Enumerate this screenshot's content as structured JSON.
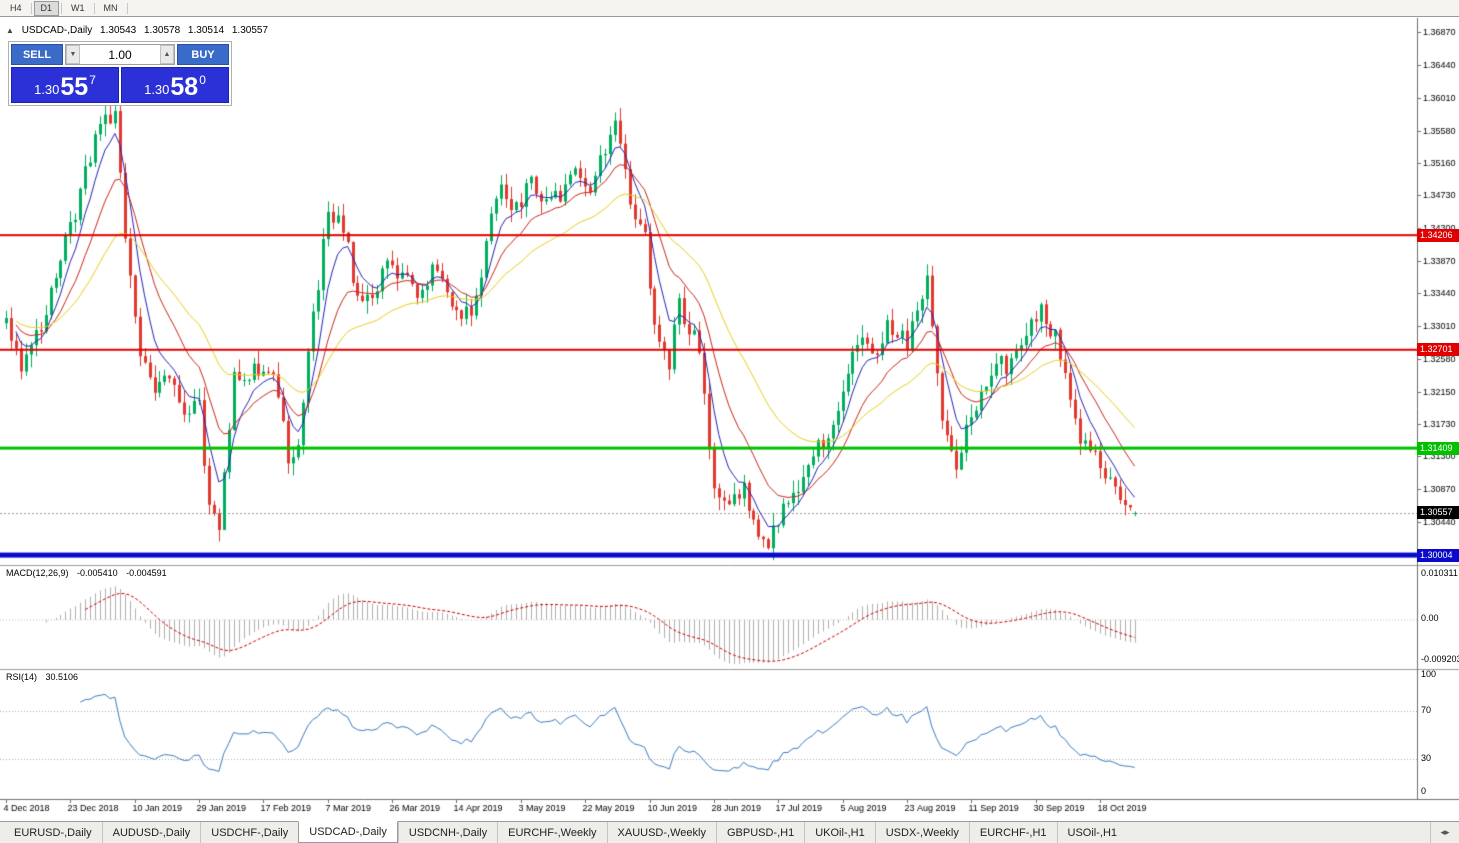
{
  "toolbar": {
    "timeframes": [
      {
        "label": "H4"
      },
      {
        "label": "D1"
      },
      {
        "label": "W1"
      },
      {
        "label": "MN"
      }
    ],
    "active_timeframe": "D1"
  },
  "chart": {
    "caption": {
      "symbol": "USDCAD-,Daily",
      "open": "1.30543",
      "high": "1.30578",
      "low": "1.30514",
      "close": "1.30557"
    },
    "trade": {
      "sell": "SELL",
      "buy": "BUY",
      "volume": "1.00",
      "bid": {
        "prefix": "1.30",
        "big": "55",
        "sup": "7"
      },
      "ask": {
        "prefix": "1.30",
        "big": "58",
        "sup": "0"
      }
    }
  },
  "macd": {
    "label": "MACD(12,26,9)",
    "value": "-0.005410",
    "signal": "-0.004591",
    "scale": {
      "top": "0.010311",
      "zero": "0.00",
      "bottom": "-0.009203"
    }
  },
  "rsi": {
    "label": "RSI(14)",
    "value": "30.5106",
    "scale": {
      "top": "100",
      "upper": "70",
      "lower": "30",
      "bottom": "0"
    }
  },
  "tabs": {
    "active_index": 3,
    "items": [
      {
        "label": "EURUSD-,Daily"
      },
      {
        "label": "AUDUSD-,Daily"
      },
      {
        "label": "USDCHF-,Daily"
      },
      {
        "label": "USDCAD-,Daily"
      },
      {
        "label": "USDCNH-,Daily"
      },
      {
        "label": "EURCHF-,Weekly"
      },
      {
        "label": "XAUUSD-,Weekly"
      },
      {
        "label": "GBPUSD-,H1"
      },
      {
        "label": "UKOil-,H1"
      },
      {
        "label": "USDX-,Weekly"
      },
      {
        "label": "EURCHF-,H1"
      },
      {
        "label": "USOil-,H1"
      }
    ],
    "scroll_icon": "◂▸"
  },
  "chart_data": {
    "type": "candlestick",
    "symbol": "USDCAD",
    "timeframe": "Daily",
    "ylim": [
      1.299,
      1.3698
    ],
    "num_candles": 229,
    "candles_per_label": 13,
    "x_labels": [
      "4 Dec 2018",
      "23 Dec 2018",
      "10 Jan 2019",
      "29 Jan 2019",
      "17 Feb 2019",
      "7 Mar 2019",
      "26 Mar 2019",
      "14 Apr 2019",
      "3 May 2019",
      "22 May 2019",
      "10 Jun 2019",
      "28 Jun 2019",
      "17 Jul 2019",
      "5 Aug 2019",
      "23 Aug 2019",
      "11 Sep 2019",
      "30 Sep 2019",
      "18 Oct 2019"
    ],
    "price_axis_ticks": [
      "1.36870",
      "1.36440",
      "1.36010",
      "1.35580",
      "1.35160",
      "1.34730",
      "1.34300",
      "1.33870",
      "1.33440",
      "1.33010",
      "1.32580",
      "1.32150",
      "1.31730",
      "1.31300",
      "1.30870",
      "1.30440",
      "1.30010"
    ],
    "keyframes": [
      [
        0,
        1.3305
      ],
      [
        3,
        1.3255
      ],
      [
        6,
        1.329
      ],
      [
        9,
        1.334
      ],
      [
        13,
        1.343
      ],
      [
        17,
        1.352
      ],
      [
        20,
        1.3585
      ],
      [
        22,
        1.357
      ],
      [
        24,
        1.343
      ],
      [
        27,
        1.3265
      ],
      [
        30,
        1.322
      ],
      [
        33,
        1.323
      ],
      [
        36,
        1.318
      ],
      [
        39,
        1.3195
      ],
      [
        41,
        1.306
      ],
      [
        43,
        1.3045
      ],
      [
        46,
        1.3245
      ],
      [
        49,
        1.3235
      ],
      [
        52,
        1.325
      ],
      [
        54,
        1.323
      ],
      [
        57,
        1.313
      ],
      [
        59,
        1.315
      ],
      [
        62,
        1.332
      ],
      [
        65,
        1.3445
      ],
      [
        68,
        1.343
      ],
      [
        71,
        1.334
      ],
      [
        74,
        1.333
      ],
      [
        77,
        1.339
      ],
      [
        80,
        1.336
      ],
      [
        83,
        1.3345
      ],
      [
        86,
        1.338
      ],
      [
        89,
        1.3345
      ],
      [
        92,
        1.332
      ],
      [
        95,
        1.333
      ],
      [
        98,
        1.345
      ],
      [
        100,
        1.3475
      ],
      [
        103,
        1.346
      ],
      [
        106,
        1.3485
      ],
      [
        109,
        1.346
      ],
      [
        112,
        1.3475
      ],
      [
        115,
        1.3495
      ],
      [
        118,
        1.348
      ],
      [
        121,
        1.354
      ],
      [
        123,
        1.356
      ],
      [
        125,
        1.35
      ],
      [
        127,
        1.3445
      ],
      [
        129,
        1.343
      ],
      [
        131,
        1.329
      ],
      [
        134,
        1.325
      ],
      [
        136,
        1.333
      ],
      [
        138,
        1.33
      ],
      [
        140,
        1.327
      ],
      [
        143,
        1.3085
      ],
      [
        146,
        1.306
      ],
      [
        149,
        1.3085
      ],
      [
        152,
        1.303
      ],
      [
        154,
        1.302
      ],
      [
        156,
        1.3045
      ],
      [
        159,
        1.308
      ],
      [
        162,
        1.313
      ],
      [
        165,
        1.315
      ],
      [
        167,
        1.318
      ],
      [
        169,
        1.3215
      ],
      [
        171,
        1.326
      ],
      [
        173,
        1.3295
      ],
      [
        175,
        1.3255
      ],
      [
        177,
        1.329
      ],
      [
        179,
        1.33
      ],
      [
        182,
        1.328
      ],
      [
        184,
        1.333
      ],
      [
        186,
        1.336
      ],
      [
        188,
        1.323
      ],
      [
        190,
        1.315
      ],
      [
        192,
        1.311
      ],
      [
        194,
        1.316
      ],
      [
        196,
        1.32
      ],
      [
        199,
        1.3245
      ],
      [
        202,
        1.325
      ],
      [
        205,
        1.329
      ],
      [
        207,
        1.331
      ],
      [
        209,
        1.333
      ],
      [
        211,
        1.33
      ],
      [
        213,
        1.327
      ],
      [
        215,
        1.321
      ],
      [
        217,
        1.316
      ],
      [
        219,
        1.313
      ],
      [
        221,
        1.3125
      ],
      [
        223,
        1.309
      ],
      [
        225,
        1.3065
      ],
      [
        228,
        1.30557
      ]
    ],
    "last_candle": {
      "open": 1.30543,
      "high": 1.30578,
      "low": 1.30514,
      "close": 1.30557
    },
    "colors": {
      "up": "#00ae5e",
      "down": "#e03a30"
    },
    "moving_averages": [
      {
        "type": "ema",
        "period": 6,
        "color": "#2525b4"
      },
      {
        "type": "ema",
        "period": 14,
        "color": "#c8281e"
      },
      {
        "type": "ema",
        "period": 32,
        "color": "#e8d020"
      }
    ],
    "horizontal_lines": [
      {
        "value": 1.34206,
        "label": "1.34206",
        "color": "#e00000",
        "width": 2
      },
      {
        "value": 1.32701,
        "label": "1.32701",
        "color": "#e00000",
        "width": 2
      },
      {
        "value": 1.31409,
        "label": "1.31409",
        "color": "#00c000",
        "width": 3
      },
      {
        "value": 1.30004,
        "label": "1.30004",
        "color": "#0a0acd",
        "width": 5
      }
    ],
    "current_price": {
      "value": 1.30557,
      "label": "1.30557"
    },
    "indicators": {
      "macd": {
        "fast": 12,
        "slow": 26,
        "signal": 9,
        "scale_max": 0.0112,
        "scale_min": -0.01,
        "hist_color": "#b0b0b0",
        "signal_color": "#cc0000"
      },
      "rsi": {
        "period": 14,
        "levels": [
          70,
          30
        ],
        "color": "#3e7cbf"
      }
    }
  }
}
